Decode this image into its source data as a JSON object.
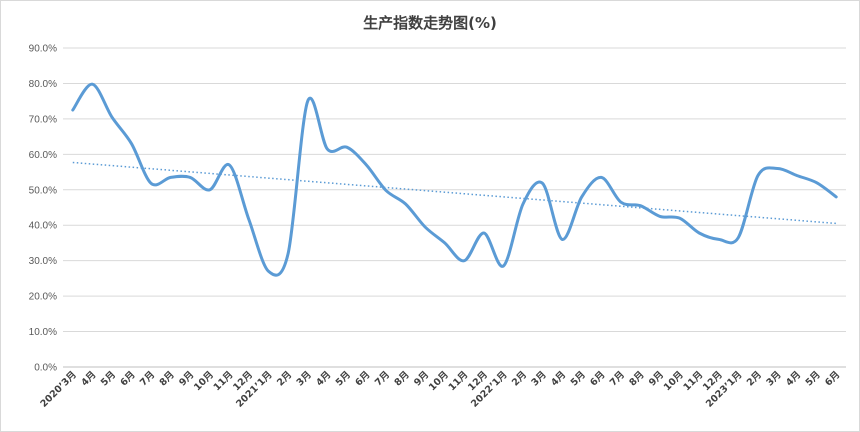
{
  "chart_data": {
    "type": "line",
    "title": "生产指数走势图(%)",
    "categories": [
      "2020’3月",
      "4月",
      "5月",
      "6月",
      "7月",
      "8月",
      "9月",
      "10月",
      "11月",
      "12月",
      "2021’1月",
      "2月",
      "3月",
      "4月",
      "5月",
      "6月",
      "7月",
      "8月",
      "9月",
      "10月",
      "11月",
      "12月",
      "2022’1月",
      "2月",
      "3月",
      "4月",
      "5月",
      "6月",
      "7月",
      "8月",
      "9月",
      "10月",
      "11月",
      "12月",
      "2023’1月",
      "2月",
      "3月",
      "4月",
      "5月",
      "6月"
    ],
    "series": [
      {
        "values": [
          72.5,
          79.8,
          70.5,
          63.0,
          51.8,
          53.5,
          53.5,
          50.0,
          57.0,
          41.5,
          27.0,
          32.0,
          75.0,
          61.5,
          62.0,
          57.0,
          49.8,
          46.0,
          39.5,
          35.0,
          30.0,
          37.8,
          28.5,
          46.0,
          51.8,
          36.0,
          48.0,
          53.5,
          46.5,
          45.5,
          42.5,
          42.0,
          37.8,
          36.0,
          36.5,
          54.0,
          56.0,
          54.0,
          52.0,
          48.0
        ],
        "color": "#5b9bd5"
      }
    ],
    "trendline": {
      "start": 57.7,
      "end": 40.5,
      "style": "dotted",
      "color": "#5b9bd5"
    },
    "ylim": [
      0,
      90
    ],
    "yticks": [
      "0.0%",
      "10.0%",
      "20.0%",
      "30.0%",
      "40.0%",
      "50.0%",
      "60.0%",
      "70.0%",
      "80.0%",
      "90.0%"
    ],
    "grid": true,
    "legend": "none"
  }
}
